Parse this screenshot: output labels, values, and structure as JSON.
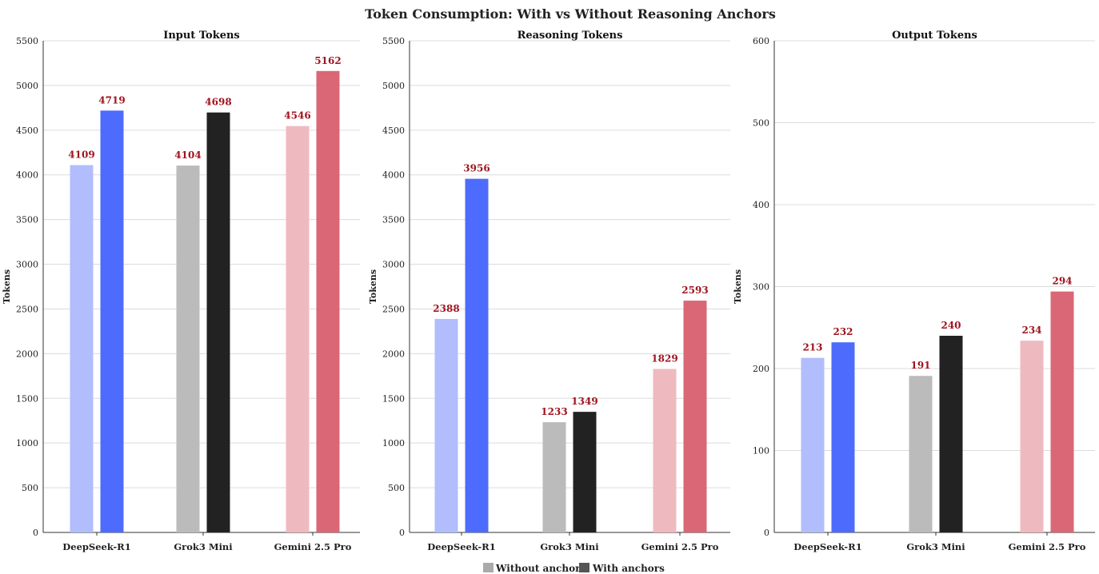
{
  "figure_title": "Token Consumption: With vs Without Reasoning Anchors",
  "legend": {
    "without_label": "Without anchors",
    "with_label": "With anchors",
    "without_color": "#aaaaaa",
    "with_color": "#555555",
    "placement": "bottom-center"
  },
  "chart_data": [
    {
      "type": "bar",
      "title": "Input Tokens",
      "ylabel": "Tokens",
      "ylim": [
        0,
        5500
      ],
      "yticks": [
        0,
        500,
        1000,
        1500,
        2000,
        2500,
        3000,
        3500,
        4000,
        4500,
        5000,
        5500
      ],
      "categories": [
        "DeepSeek-R1",
        "Grok3 Mini",
        "Gemini 2.5 Pro"
      ],
      "series": [
        {
          "name": "Without anchors",
          "values": [
            4109,
            4104,
            4546
          ],
          "colors": [
            "#b1bdfd",
            "#bbbbbb",
            "#efbabf"
          ]
        },
        {
          "name": "With anchors",
          "values": [
            4719,
            4698,
            5162
          ],
          "colors": [
            "#4d6cfd",
            "#222222",
            "#da6775"
          ]
        }
      ],
      "grid": true
    },
    {
      "type": "bar",
      "title": "Reasoning Tokens",
      "ylabel": "Tokens",
      "ylim": [
        0,
        5500
      ],
      "yticks": [
        0,
        500,
        1000,
        1500,
        2000,
        2500,
        3000,
        3500,
        4000,
        4500,
        5000,
        5500
      ],
      "categories": [
        "DeepSeek-R1",
        "Grok3 Mini",
        "Gemini 2.5 Pro"
      ],
      "series": [
        {
          "name": "Without anchors",
          "values": [
            2388,
            1233,
            1829
          ],
          "colors": [
            "#b1bdfd",
            "#bbbbbb",
            "#efbabf"
          ]
        },
        {
          "name": "With anchors",
          "values": [
            3956,
            1349,
            2593
          ],
          "colors": [
            "#4d6cfd",
            "#222222",
            "#da6775"
          ]
        }
      ],
      "grid": true
    },
    {
      "type": "bar",
      "title": "Output Tokens",
      "ylabel": "Tokens",
      "ylim": [
        0,
        600
      ],
      "yticks": [
        0,
        100,
        200,
        300,
        400,
        500,
        600
      ],
      "categories": [
        "DeepSeek-R1",
        "Grok3 Mini",
        "Gemini 2.5 Pro"
      ],
      "series": [
        {
          "name": "Without anchors",
          "values": [
            213,
            191,
            234
          ],
          "colors": [
            "#b1bdfd",
            "#bbbbbb",
            "#efbabf"
          ]
        },
        {
          "name": "With anchors",
          "values": [
            232,
            240,
            294
          ],
          "colors": [
            "#4d6cfd",
            "#222222",
            "#da6775"
          ]
        }
      ],
      "grid": true
    }
  ]
}
